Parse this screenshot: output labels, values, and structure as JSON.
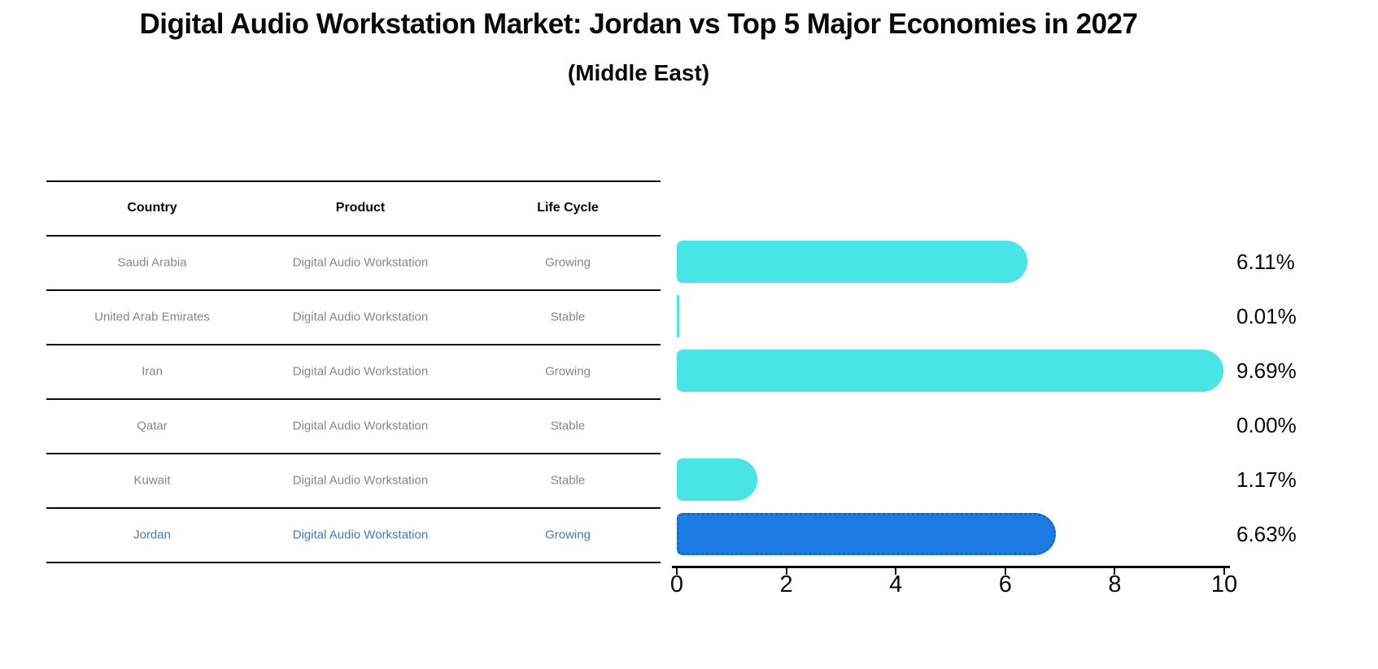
{
  "title": "Digital Audio Workstation Market: Jordan vs Top 5 Major Economies in 2027",
  "subtitle": "(Middle East)",
  "table": {
    "headers": [
      "Country",
      "Product",
      "Life Cycle"
    ],
    "rows": [
      {
        "country": "Saudi Arabia",
        "product": "Digital Audio Workstation",
        "life_cycle": "Growing",
        "highlighted": false
      },
      {
        "country": "United Arab Emirates",
        "product": "Digital Audio Workstation",
        "life_cycle": "Stable",
        "highlighted": false
      },
      {
        "country": "Iran",
        "product": "Digital Audio Workstation",
        "life_cycle": "Growing",
        "highlighted": false
      },
      {
        "country": "Qatar",
        "product": "Digital Audio Workstation",
        "life_cycle": "Stable",
        "highlighted": false
      },
      {
        "country": "Kuwait",
        "product": "Digital Audio Workstation",
        "life_cycle": "Stable",
        "highlighted": false
      },
      {
        "country": "Jordan",
        "product": "Digital Audio Workstation",
        "life_cycle": "Growing",
        "highlighted": true
      }
    ]
  },
  "chart_data": {
    "type": "bar",
    "orientation": "horizontal",
    "title": "Digital Audio Workstation Market: Jordan vs Top 5 Major Economies in 2027",
    "subtitle": "(Middle East)",
    "categories": [
      "Saudi Arabia",
      "United Arab Emirates",
      "Iran",
      "Qatar",
      "Kuwait",
      "Jordan"
    ],
    "values": [
      6.11,
      0.01,
      9.69,
      0.0,
      1.17,
      6.63
    ],
    "value_labels": [
      "6.11%",
      "0.01%",
      "9.69%",
      "0.00%",
      "1.17%",
      "6.63%"
    ],
    "xlim": [
      0,
      10
    ],
    "x_ticks": [
      0,
      2,
      4,
      6,
      8,
      10
    ],
    "grid": false,
    "legend": "none",
    "bar_color": "#47e5e6",
    "highlight_color": "#1d7ce3",
    "highlight_index": 5
  },
  "colors": {
    "bar_cyan": "#47e5e6",
    "bar_blue": "#1d7ce3",
    "highlight_text_blue": "#3c7cc9",
    "table_text_gray": "#868686",
    "ink": "#0a0a0a"
  }
}
